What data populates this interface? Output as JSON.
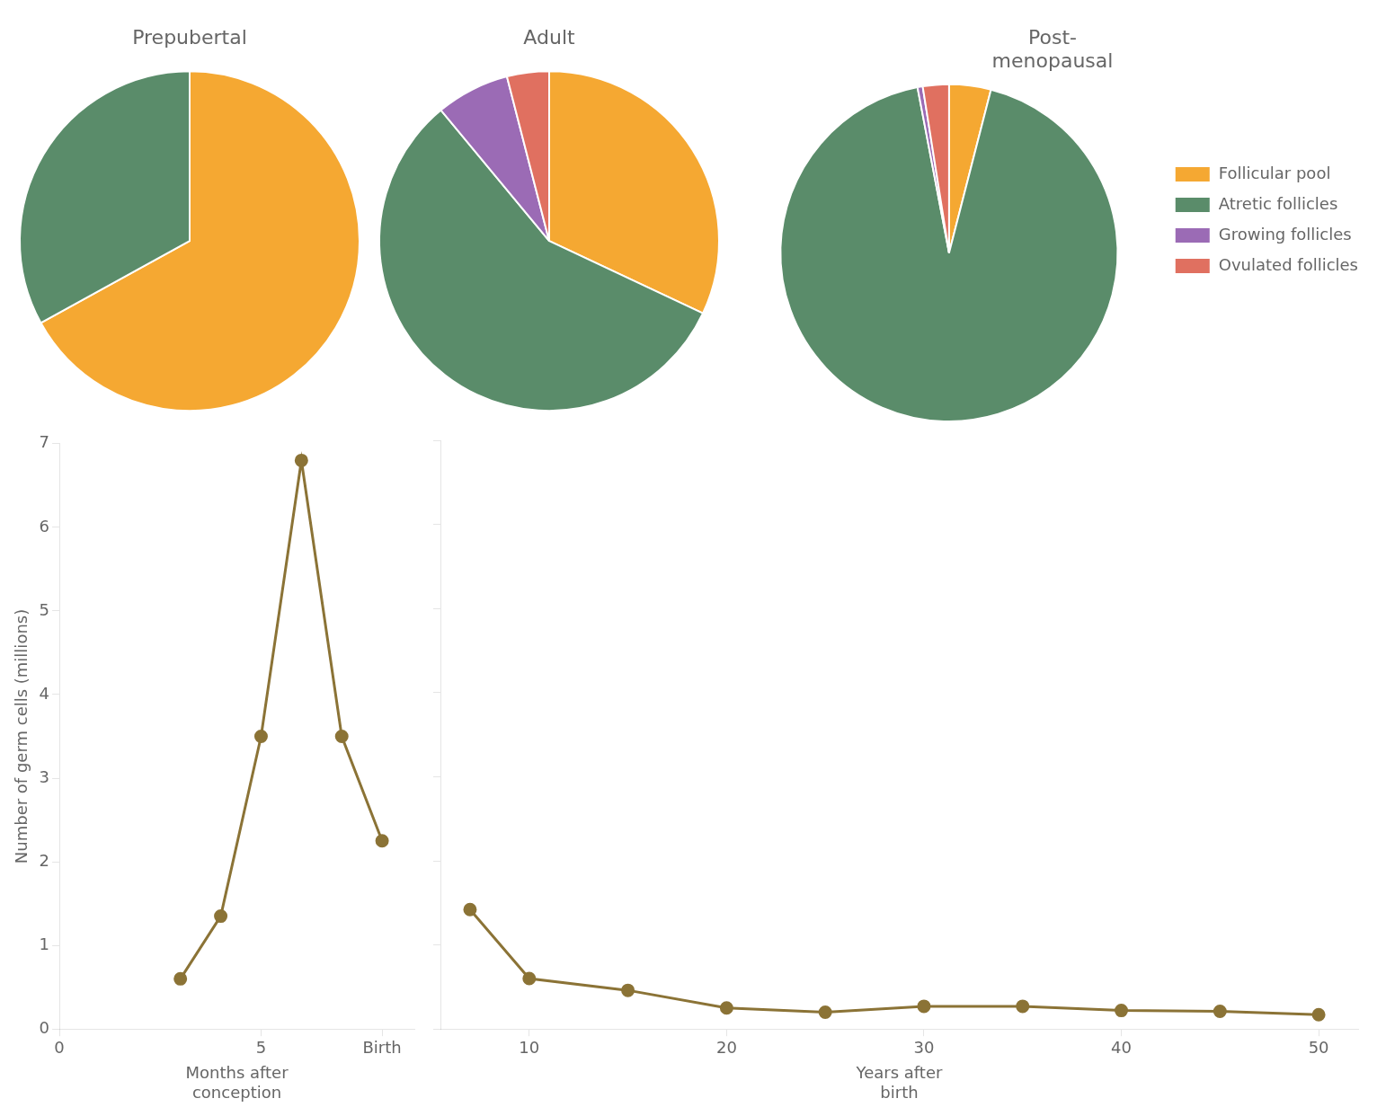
{
  "chart_data": [
    {
      "type": "line",
      "x": [
        3,
        4,
        5,
        6,
        7,
        8
      ],
      "values": [
        0.6,
        1.35,
        3.5,
        6.8,
        3.5,
        2.25
      ],
      "color": "#8B7336",
      "marker": "circle",
      "xlabel": "Months after\nconception",
      "ylabel": "Number of germ cells (millions)",
      "xlim": [
        0,
        8.8
      ],
      "xticks": [
        0,
        5,
        {
          "value": 8,
          "label": "Birth"
        }
      ],
      "ylim": [
        0,
        7
      ],
      "yticks": [
        0,
        1,
        2,
        3,
        4,
        5,
        6,
        7
      ],
      "grid": false
    },
    {
      "type": "line",
      "x": [
        7,
        10,
        15,
        20,
        25,
        30,
        35,
        40,
        45,
        50
      ],
      "values": [
        1.42,
        0.6,
        0.46,
        0.25,
        0.2,
        0.27,
        0.27,
        0.22,
        0.21,
        0.17
      ],
      "color": "#8B7336",
      "marker": "circle",
      "xlabel": "Years after\nbirth",
      "xlim": [
        5.5,
        52
      ],
      "xticks": [
        10,
        20,
        30,
        40,
        50
      ],
      "ylim": [
        0,
        7
      ],
      "yticks": [
        0,
        1,
        2,
        3,
        4,
        5,
        6,
        7
      ],
      "grid": false,
      "tick_labels": "x"
    },
    {
      "type": "pie",
      "title": "Prepubertal",
      "categories": [
        "Follicular pool",
        "Atretic follicles",
        "Growing follicles",
        "Ovulated follicles"
      ],
      "values": [
        0.67,
        0.33,
        0.0,
        0.0
      ],
      "colors": [
        "#F5A832",
        "#5A8C6A",
        "#9B6BB5",
        "#E07060"
      ]
    },
    {
      "type": "pie",
      "title": "Adult",
      "categories": [
        "Follicular pool",
        "Atretic follicles",
        "Growing follicles",
        "Ovulated follicles"
      ],
      "values": [
        0.32,
        0.57,
        0.07,
        0.04
      ],
      "colors": [
        "#F5A832",
        "#5A8C6A",
        "#9B6BB5",
        "#E07060"
      ]
    },
    {
      "type": "pie",
      "title": "Post-\nmenopausal",
      "categories": [
        "Follicular pool",
        "Atretic follicles",
        "Growing follicles",
        "Ovulated follicles"
      ],
      "values": [
        0.04,
        0.93,
        0.005,
        0.025
      ],
      "colors": [
        "#F5A832",
        "#5A8C6A",
        "#9B6BB5",
        "#E07060"
      ],
      "legend": "right"
    }
  ]
}
